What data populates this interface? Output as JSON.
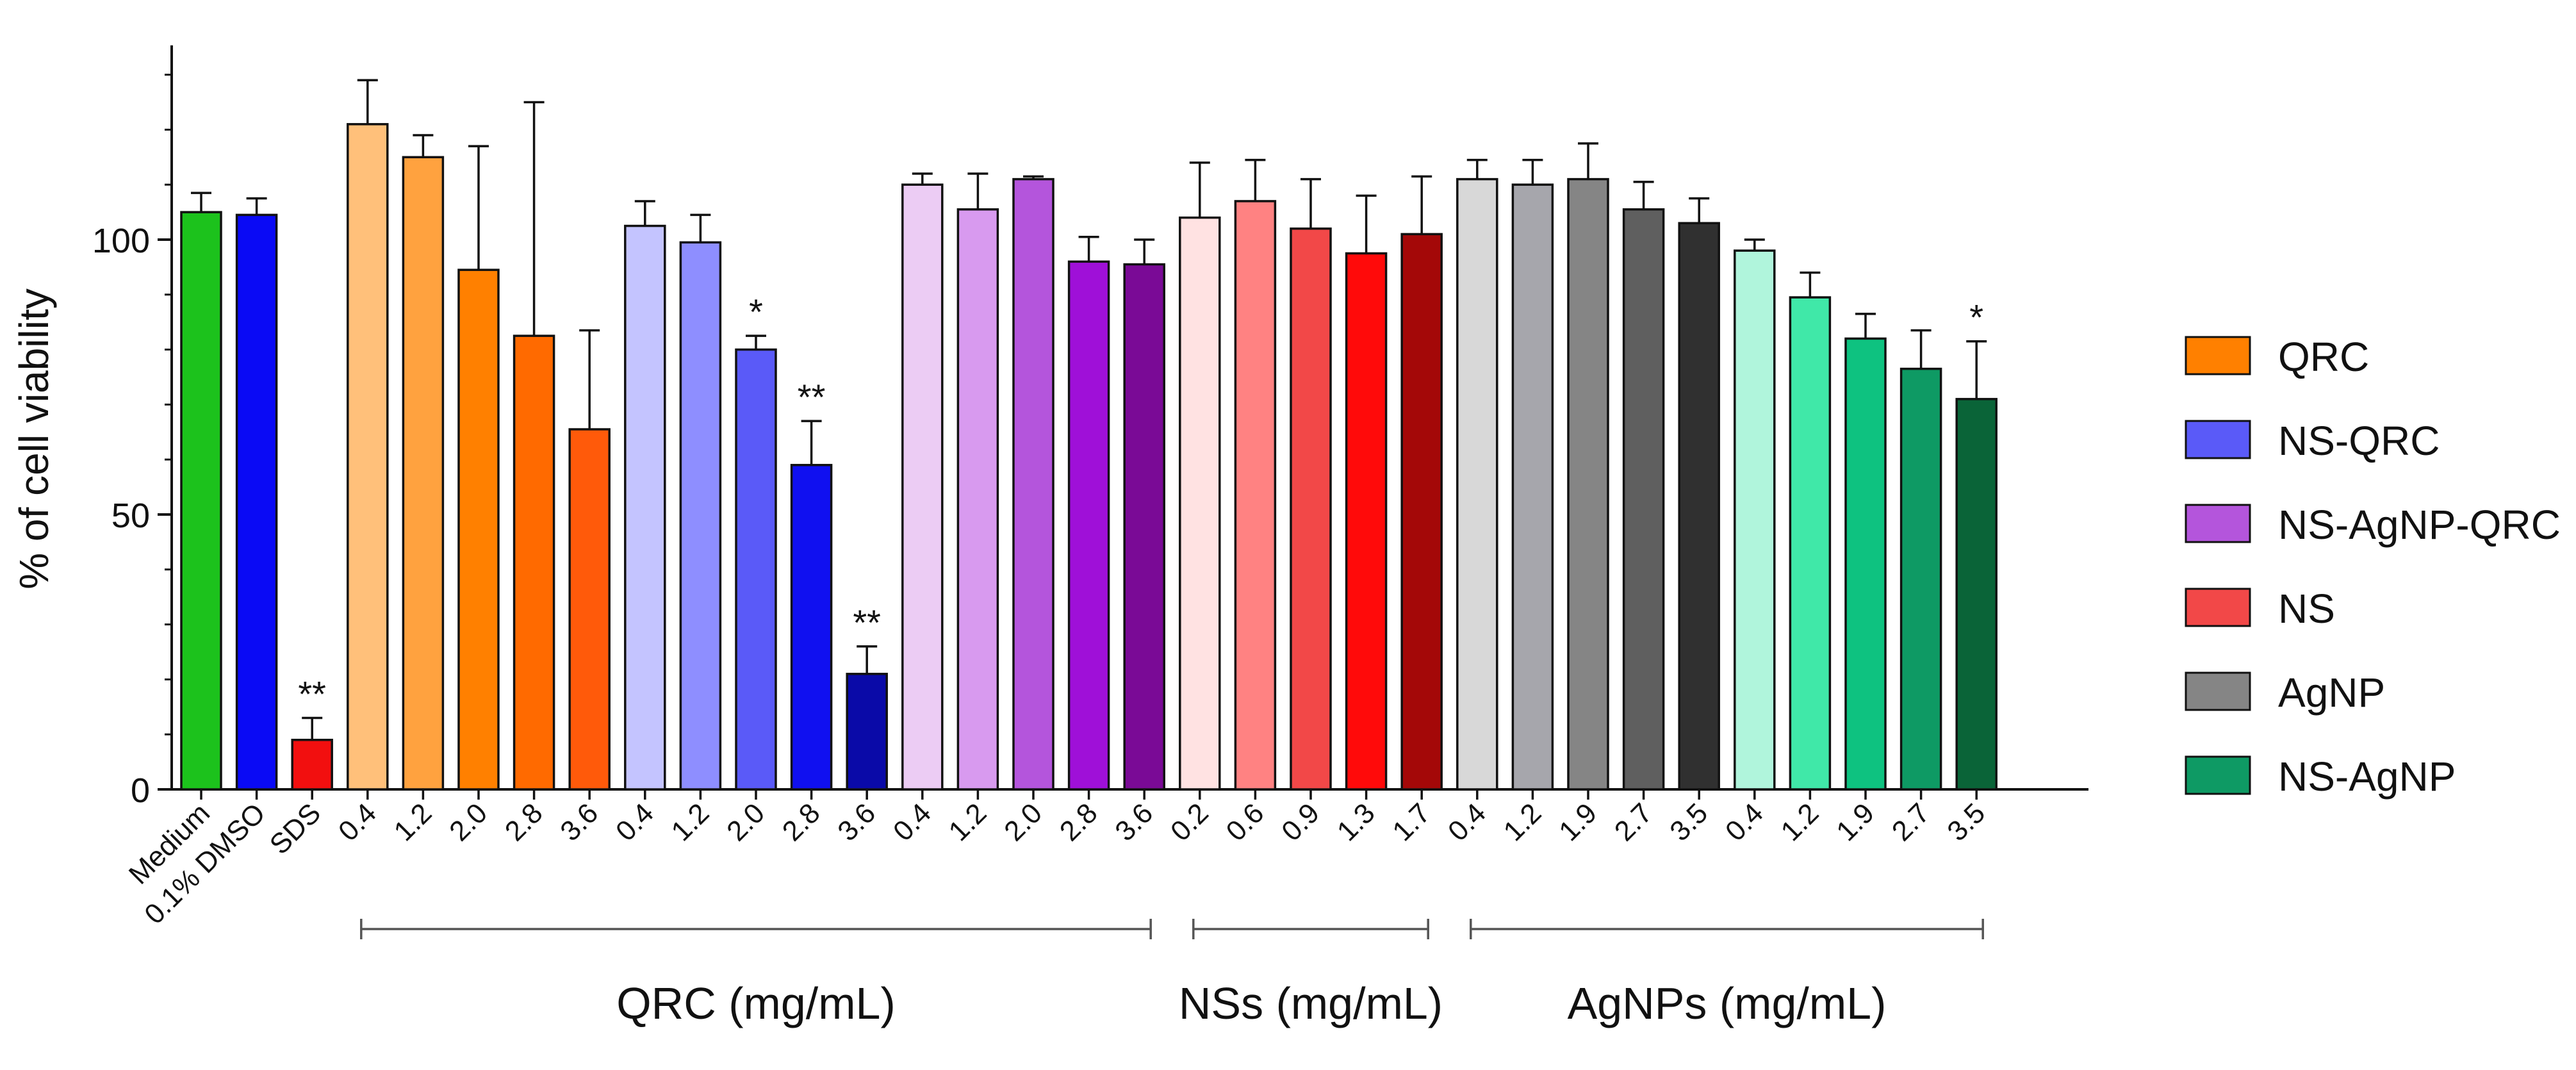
{
  "chart_data": {
    "type": "bar",
    "title": "",
    "xlabel": "",
    "ylabel": "% of cell viability",
    "ylim": [
      0,
      140
    ],
    "yticks": [
      0,
      50,
      100
    ],
    "grid": false,
    "legend_position": "right",
    "legend": [
      {
        "label": "QRC",
        "color": "#FF8000"
      },
      {
        "label": "NS-QRC",
        "color": "#5A5AF8"
      },
      {
        "label": "NS-AgNP-QRC",
        "color": "#B455DC"
      },
      {
        "label": "NS",
        "color": "#F24848"
      },
      {
        "label": "AgNP",
        "color": "#858585"
      },
      {
        "label": "NS-AgNP",
        "color": "#0E9A64"
      }
    ],
    "categories": [
      "Medium",
      "0.1% DMSO",
      "SDS",
      "0.4",
      "1.2",
      "2.0",
      "2.8",
      "3.6",
      "0.4",
      "1.2",
      "2.0",
      "2.8",
      "3.6",
      "0.4",
      "1.2",
      "2.0",
      "2.8",
      "3.6",
      "0.2",
      "0.6",
      "0.9",
      "1.3",
      "1.7",
      "0.4",
      "1.2",
      "1.9",
      "2.7",
      "3.5",
      "0.4",
      "1.2",
      "1.9",
      "2.7",
      "3.5"
    ],
    "values": [
      105,
      104.5,
      9,
      121,
      115,
      94.5,
      82.5,
      65.5,
      102.5,
      99.5,
      80,
      59,
      21,
      110,
      105.5,
      111,
      96,
      95.5,
      104,
      107,
      102,
      97.5,
      101,
      111,
      110,
      111,
      105.5,
      103,
      98,
      89.5,
      82,
      76.5,
      71
    ],
    "errors": [
      3.5,
      3,
      4,
      8,
      4,
      22.5,
      42.5,
      18,
      4.5,
      5,
      2.5,
      8,
      5,
      2,
      6.5,
      0.5,
      4.5,
      4.5,
      10,
      7.5,
      9,
      10.5,
      10.5,
      3.5,
      4.5,
      6.5,
      5,
      4.5,
      2,
      4.5,
      4.5,
      7,
      10.5
    ],
    "colors": [
      "#1CC21C",
      "#0A0AF5",
      "#F20F0F",
      "#FFC07A",
      "#FFA23F",
      "#FF8000",
      "#FF6A00",
      "#FF5A0A",
      "#C4C4FF",
      "#8E8EFF",
      "#5A5AF8",
      "#1010F0",
      "#0A0AA8",
      "#ECCCF4",
      "#D89AEF",
      "#B455DC",
      "#9F10D8",
      "#7A0A96",
      "#FFE2E2",
      "#FF8282",
      "#F24848",
      "#FF0A0A",
      "#A40808",
      "#D8D8D8",
      "#A6A6AC",
      "#858585",
      "#5F5F5F",
      "#303030",
      "#B0F5DC",
      "#40E8A8",
      "#0EC280",
      "#0E9A64",
      "#0A6438"
    ],
    "significance": [
      "",
      "",
      "**",
      "",
      "",
      "",
      "",
      "",
      "",
      "",
      "*",
      "**",
      "**",
      "",
      "",
      "",
      "",
      "",
      "",
      "",
      "",
      "",
      "",
      "",
      "",
      "",
      "",
      "",
      "",
      "",
      "",
      "",
      "*"
    ],
    "groups": [
      {
        "label": "QRC (mg/mL)",
        "start": 3,
        "end": 17
      },
      {
        "label": "NSs (mg/mL)",
        "start": 18,
        "end": 22
      },
      {
        "label": "AgNPs (mg/mL)",
        "start": 23,
        "end": 32
      }
    ]
  }
}
